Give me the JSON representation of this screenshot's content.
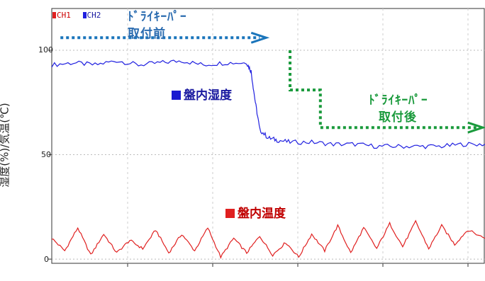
{
  "chart_data": {
    "type": "line",
    "ylabel": "湿度(%)/気温(℃)",
    "ylim": [
      -2,
      120
    ],
    "y_ticks": [
      "0",
      "50",
      "100"
    ],
    "grid": true,
    "legend": [
      {
        "name": "CH1",
        "color": "#e02020"
      },
      {
        "name": "CH2",
        "color": "#2020e0"
      }
    ],
    "series": [
      {
        "name": "CH2",
        "label": "盤内湿度",
        "color": "#2020e0",
        "x": [
          0,
          5,
          10,
          15,
          20,
          25,
          30,
          35,
          40,
          45,
          46,
          47,
          48,
          50,
          52,
          55,
          60,
          65,
          70,
          75,
          80,
          85,
          90,
          95,
          100
        ],
        "values": [
          93,
          94,
          93,
          95,
          93,
          94,
          95,
          93,
          94,
          94,
          90,
          75,
          62,
          58,
          57,
          56,
          56,
          55,
          55,
          54,
          54,
          54,
          54,
          55,
          55
        ]
      },
      {
        "name": "CH1",
        "label": "盤内温度",
        "color": "#e02020",
        "x": [
          0,
          3,
          6,
          9,
          12,
          15,
          18,
          21,
          24,
          27,
          30,
          33,
          36,
          39,
          42,
          45,
          48,
          51,
          54,
          57,
          60,
          63,
          66,
          69,
          72,
          75,
          78,
          81,
          84,
          87,
          90,
          93,
          96,
          100
        ],
        "values": [
          10,
          4,
          15,
          2,
          12,
          3,
          9,
          5,
          14,
          3,
          12,
          4,
          15,
          1,
          10,
          3,
          11,
          2,
          8,
          1,
          12,
          4,
          16,
          3,
          15,
          5,
          17,
          6,
          18,
          5,
          16,
          7,
          14,
          10
        ]
      }
    ],
    "annotations": [
      {
        "text_line1": "ﾄﾞﾗｲｷｰﾊﾟｰ",
        "text_line2": "取付前",
        "color": "#1a75bb"
      },
      {
        "text_line1": "ﾄﾞﾗｲｷｰﾊﾟｰ",
        "text_line2": "取付後",
        "color": "#1a9a3c"
      }
    ]
  }
}
